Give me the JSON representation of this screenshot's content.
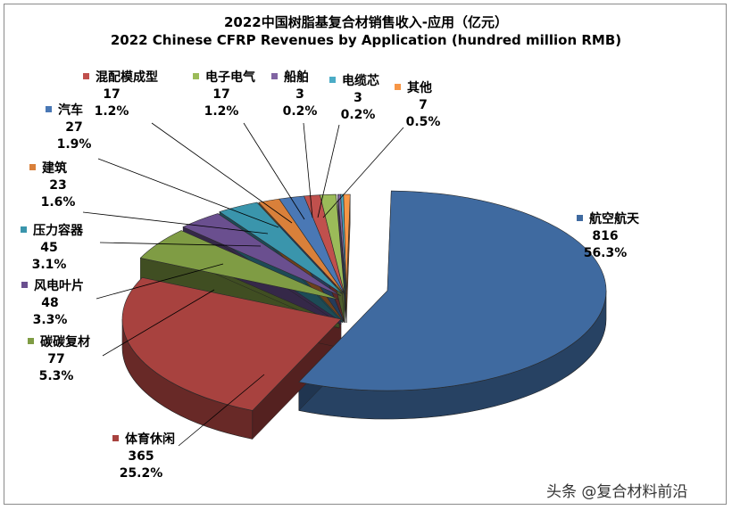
{
  "chart_data": {
    "type": "pie",
    "title": "2022中国树脂基复合材销售收入-应用（亿元）",
    "subtitle": "2022 Chinese CFRP Revenues by Application (hundred million RMB)",
    "slices": [
      {
        "name": "航空航天",
        "value": 816,
        "percent": "56.3%",
        "color": "#3f6aa0"
      },
      {
        "name": "体育休闲",
        "value": 365,
        "percent": "25.2%",
        "color": "#a8423f"
      },
      {
        "name": "碳碳复材",
        "value": 77,
        "percent": "5.3%",
        "color": "#7f9c44"
      },
      {
        "name": "风电叶片",
        "value": 48,
        "percent": "3.3%",
        "color": "#6a4f8f"
      },
      {
        "name": "压力容器",
        "value": 45,
        "percent": "3.1%",
        "color": "#3a95ac"
      },
      {
        "name": "建筑",
        "value": 23,
        "percent": "1.6%",
        "color": "#d9803a"
      },
      {
        "name": "汽车",
        "value": 27,
        "percent": "1.9%",
        "color": "#4a78b5"
      },
      {
        "name": "混配模成型",
        "value": 17,
        "percent": "1.2%",
        "color": "#c0504d"
      },
      {
        "name": "电子电气",
        "value": 17,
        "percent": "1.2%",
        "color": "#9bbb59"
      },
      {
        "name": "船舶",
        "value": 3,
        "percent": "0.2%",
        "color": "#8064a2"
      },
      {
        "name": "电缆芯",
        "value": 3,
        "percent": "0.2%",
        "color": "#4bacc6"
      },
      {
        "name": "其他",
        "value": 7,
        "percent": "0.5%",
        "color": "#f79646"
      }
    ]
  },
  "watermark": "头条 @复合材料前沿"
}
